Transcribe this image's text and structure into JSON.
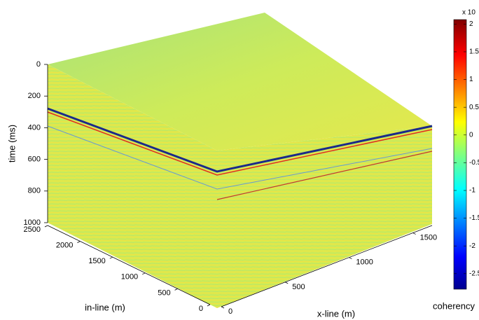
{
  "chart_data": {
    "type": "cube",
    "z_label": "time (ms)",
    "zlim": [
      0,
      1000
    ],
    "zticks": [
      0,
      200,
      400,
      600,
      800,
      1000
    ],
    "y_label": "in-line (m)",
    "ylim": [
      0,
      2500
    ],
    "yticks": [
      0,
      500,
      1000,
      1500,
      2000,
      2500
    ],
    "x_label": "x-line (m)",
    "xlim": [
      0,
      1650
    ],
    "xticks": [
      0,
      500,
      1000,
      1500
    ],
    "colorbar_label": "coherency",
    "colorbar_exponent_label": "x 10",
    "colormap": "jet",
    "clim": [
      -2.78,
      2.08
    ],
    "cticks": [
      2,
      1.5,
      1,
      0.5,
      0,
      -0.5,
      -1,
      -1.5,
      -2,
      -2.5
    ]
  }
}
